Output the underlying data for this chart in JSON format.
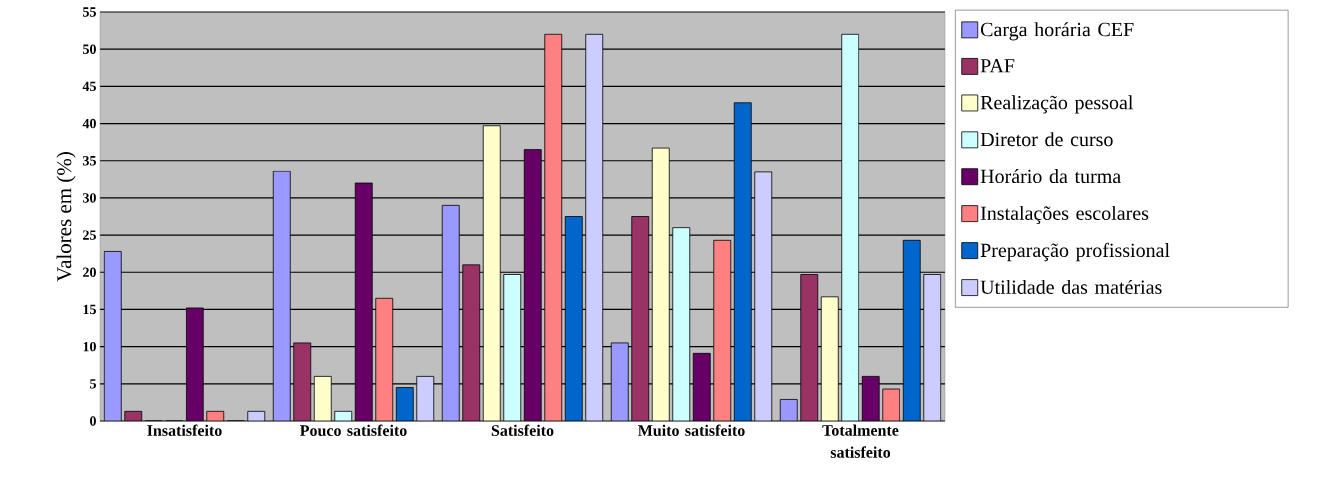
{
  "chart_data": {
    "type": "bar",
    "ylabel": "Valores em (%)",
    "categories": [
      "Insatisfeito",
      "Pouco satisfeito",
      "Satisfeito",
      "Muito satisfeito",
      "Totalmente satisfeito"
    ],
    "series": [
      {
        "name": "Carga horária CEF",
        "color": "#9999ff",
        "values": [
          22.8,
          33.6,
          29,
          10.5,
          2.9
        ]
      },
      {
        "name": "PAF",
        "color": "#993366",
        "values": [
          1.3,
          10.5,
          21,
          27.5,
          19.7
        ]
      },
      {
        "name": "Realização pessoal",
        "color": "#ffffcc",
        "values": [
          0,
          6,
          39.7,
          36.7,
          16.7
        ]
      },
      {
        "name": "Diretor de curso",
        "color": "#ccffff",
        "values": [
          0,
          1.3,
          19.7,
          26,
          52
        ]
      },
      {
        "name": "Horário da turma",
        "color": "#660066",
        "values": [
          15.2,
          32,
          36.5,
          9.1,
          6
        ]
      },
      {
        "name": "Instalações escolares",
        "color": "#ff8080",
        "values": [
          1.3,
          16.5,
          52,
          24.3,
          4.3
        ]
      },
      {
        "name": "Preparação profissional",
        "color": "#0066cc",
        "values": [
          0,
          4.5,
          27.5,
          42.8,
          24.3
        ]
      },
      {
        "name": "Utilidade das matérias",
        "color": "#ccccff",
        "values": [
          1.3,
          6,
          52,
          33.5,
          19.7
        ]
      }
    ],
    "ylim": [
      0,
      55
    ],
    "yticks": [
      0,
      5,
      10,
      15,
      20,
      25,
      30,
      35,
      40,
      45,
      50,
      55
    ],
    "grid": "y",
    "legend": "right"
  }
}
